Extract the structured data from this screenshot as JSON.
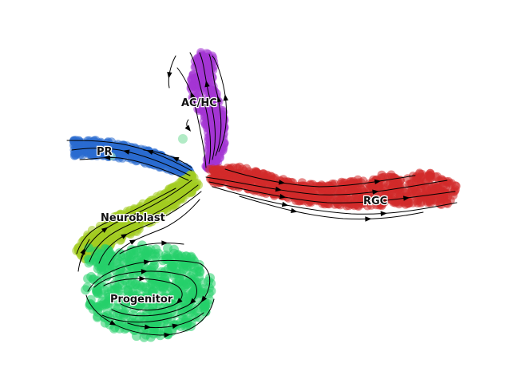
{
  "chart_data": {
    "type": "scatter",
    "title": "",
    "xlabel": "",
    "ylabel": "",
    "grid": false,
    "axes_visible": false,
    "clusters": [
      {
        "name": "AC/HC",
        "color": "#a434d4"
      },
      {
        "name": "PR",
        "color": "#2a6bd0"
      },
      {
        "name": "RGC",
        "color": "#d12a2a"
      },
      {
        "name": "Neuroblast",
        "color": "#a3cc20"
      },
      {
        "name": "Progenitor",
        "color": "#25cf6a"
      }
    ],
    "overlay": "velocity streamlines with arrows",
    "stray_point_color": "#9fe6b8"
  }
}
